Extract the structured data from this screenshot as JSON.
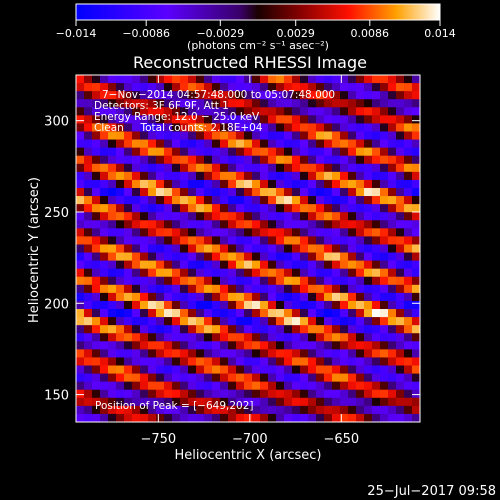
{
  "chart_data": {
    "type": "heatmap",
    "title": "Reconstructed RHESSI Image",
    "xlabel": "Heliocentric X (arcsec)",
    "ylabel": "Heliocentric Y (arcsec)",
    "xlim": [
      -795,
      -607
    ],
    "ylim": [
      135,
      325
    ],
    "x_ticks": [
      -750,
      -700,
      -650
    ],
    "x_tick_labels": [
      "−750",
      "−700",
      "−650"
    ],
    "y_ticks": [
      150,
      200,
      250,
      300
    ],
    "y_tick_labels": [
      "150",
      "200",
      "250",
      "300"
    ],
    "colorbar": {
      "min": -0.014,
      "max": 0.014,
      "ticks": [
        -0.014,
        -0.0086,
        -0.0029,
        0.0029,
        0.0086,
        0.014
      ],
      "tick_labels": [
        "−0.014",
        "−0.0086",
        "−0.0029",
        "0.0029",
        "0.0086",
        "0.014"
      ],
      "unit_label": "(photons cm⁻² s⁻¹ asec⁻²)"
    },
    "annotations": [
      "7−Nov−2014 04:57:48.000 to 05:07:48.000",
      "Detectors: 3F 6F 9F, Att 1",
      "Energy Range: 12.0 − 25.0 keV",
      "Clean     Total counts: 2.18E+04"
    ],
    "peak_label": "Position of Peak = [−649,202]",
    "peak": [
      -649,
      202
    ]
  },
  "footer": {
    "date": "25−Jul−2017 09:58"
  }
}
